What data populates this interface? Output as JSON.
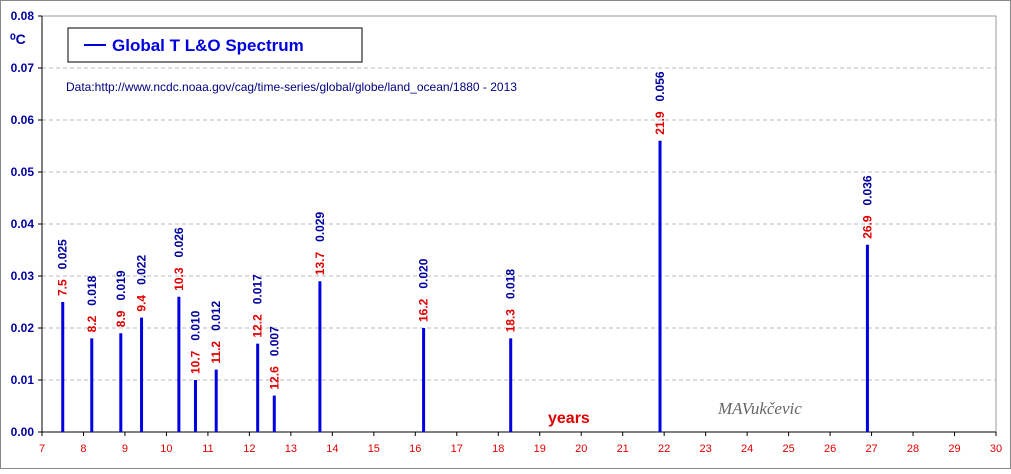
{
  "chart_data": {
    "type": "spike",
    "legend_label": "Global T L&O Spectrum",
    "y_unit": "⁰C",
    "note": "Data:http://www.ncdc.noaa.gov/cag/time-series/global/globe/land_ocean/1880 - 2013",
    "x_label": "years",
    "watermark": "MAVukčevic",
    "color": "#0000e0",
    "period_label_color": "#e00000",
    "x": [
      7.5,
      8.2,
      8.9,
      9.4,
      10.3,
      10.7,
      11.2,
      12.2,
      12.6,
      13.7,
      16.2,
      18.3,
      21.9,
      26.9
    ],
    "values": [
      0.025,
      0.018,
      0.019,
      0.022,
      0.026,
      0.01,
      0.012,
      0.017,
      0.007,
      0.029,
      0.02,
      0.018,
      0.056,
      0.036
    ],
    "value_labels": [
      "0.025",
      "0.018",
      "0.019",
      "0.022",
      "0.026",
      "0.010",
      "0.012",
      "0.017",
      "0.007",
      "0.029",
      "0.020",
      "0.018",
      "0.056",
      "0.036"
    ],
    "xlim": [
      7,
      30
    ],
    "xticks": [
      7,
      8,
      9,
      10,
      11,
      12,
      13,
      14,
      15,
      16,
      17,
      18,
      19,
      20,
      21,
      22,
      23,
      24,
      25,
      26,
      27,
      28,
      29,
      30
    ],
    "ylim": [
      0,
      0.08
    ],
    "yticks": [
      {
        "value": 0,
        "label": "0.00"
      },
      {
        "value": 0.01,
        "label": "0.01"
      },
      {
        "value": 0.02,
        "label": "0.02"
      },
      {
        "value": 0.03,
        "label": "0.03"
      },
      {
        "value": 0.04,
        "label": "0.04"
      },
      {
        "value": 0.05,
        "label": "0.05"
      },
      {
        "value": 0.06,
        "label": "0.06"
      },
      {
        "value": 0.07,
        "label": "0.07"
      },
      {
        "value": 0.08,
        "label": "0.08"
      }
    ],
    "grid": true
  }
}
